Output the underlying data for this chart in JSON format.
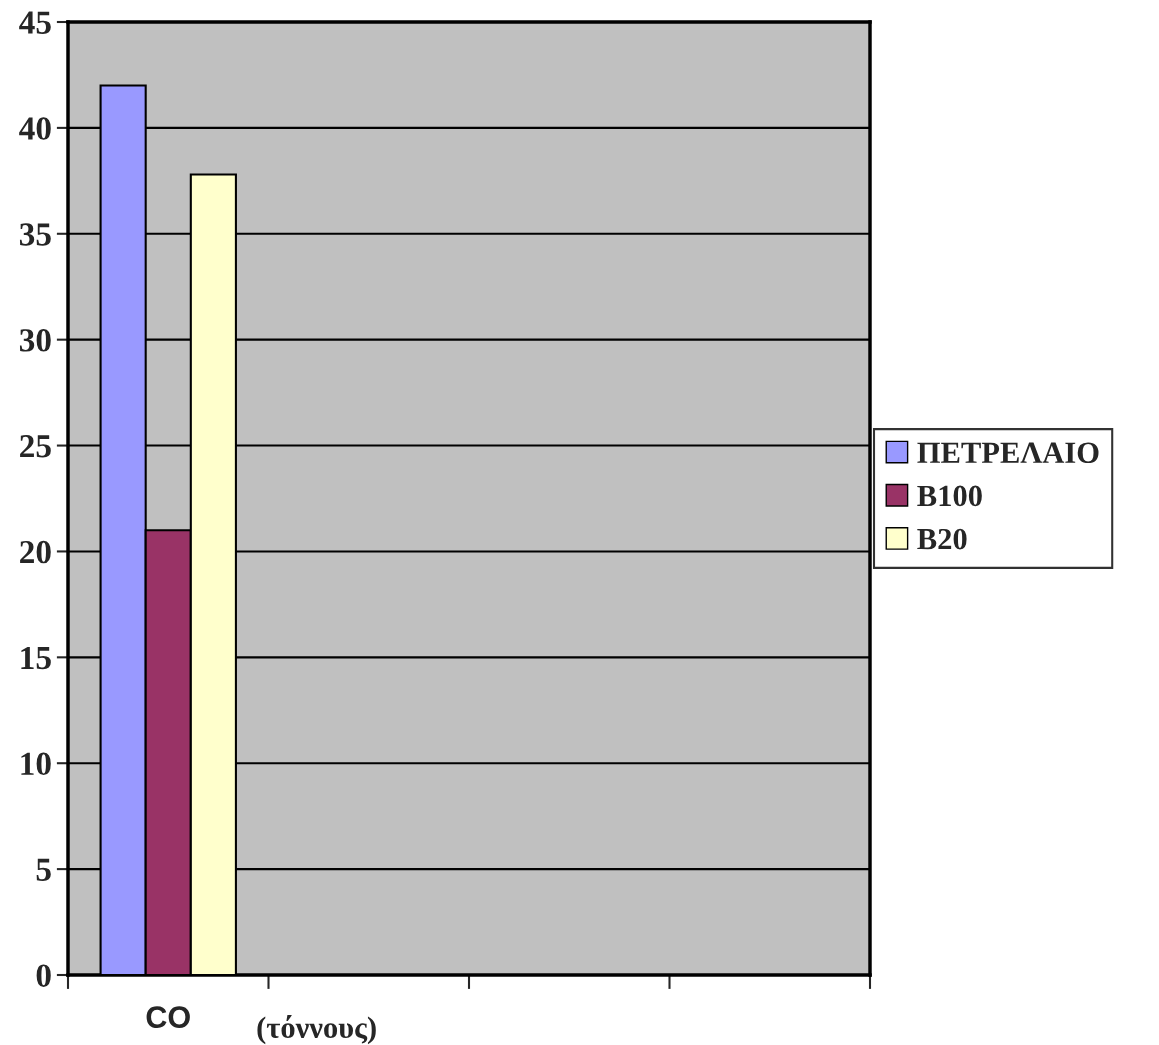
{
  "chart_data": {
    "type": "bar",
    "categories": [
      "CO",
      null,
      null,
      null
    ],
    "xlabel": "(τόννους)",
    "series": [
      {
        "name": "ΠΕΤΡΕΛΑΙΟ",
        "color": "#9999ff",
        "values": [
          42,
          null,
          null,
          null
        ]
      },
      {
        "name": "B100",
        "color": "#993366",
        "values": [
          21,
          null,
          null,
          null
        ]
      },
      {
        "name": "B20",
        "color": "#ffffcc",
        "values": [
          37.8,
          null,
          null,
          null
        ]
      }
    ],
    "ylim": [
      0,
      45
    ],
    "yticks": [
      0,
      5,
      10,
      15,
      20,
      25,
      30,
      35,
      40,
      45
    ],
    "grid": "y",
    "legend": "right"
  }
}
